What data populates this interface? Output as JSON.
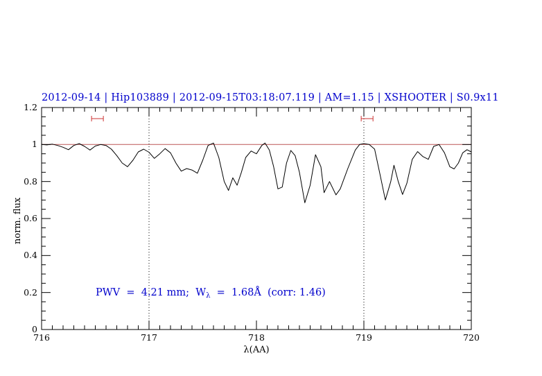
{
  "chart_data": {
    "type": "line",
    "title": "2012-09-14 | Hip103889 | 2012-09-15T03:18:07.119 | AM=1.15 | XSHOOTER | S0.9x11",
    "xlabel": "λ(AA)",
    "ylabel": "norm. flux",
    "xlim": [
      716,
      720
    ],
    "ylim": [
      0,
      1.2
    ],
    "x_major_ticks": [
      716,
      717,
      718,
      719,
      720
    ],
    "x_tick_labels": [
      "716",
      "717",
      "718",
      "719",
      "720"
    ],
    "y_major_ticks": [
      0,
      0.2,
      0.4,
      0.6,
      0.8,
      1,
      1.2
    ],
    "y_tick_labels": [
      "0",
      "0.2",
      "0.4",
      "0.6",
      "0.8",
      "1",
      "1.2"
    ],
    "x_minor_step": 0.1,
    "y_minor_step": 0.05,
    "grid": "off",
    "vlines": [
      717,
      719
    ],
    "vline_style": "dotted",
    "legend": "none",
    "colors": {
      "title": "#0000cc",
      "annotation": "#0000cc",
      "spectrum": "#000000",
      "continuum": "#bb5555",
      "markers": "#cc3333",
      "axes": "#000000"
    },
    "markers": [
      {
        "x": 716.52,
        "halfwidth": 0.055,
        "y": 1.14
      },
      {
        "x": 719.03,
        "halfwidth": 0.055,
        "y": 1.14
      }
    ],
    "annotation": {
      "part1": "PWV  =  4.21 mm;  W",
      "sub": "λ",
      "part2": "  =  1.68Å  (corr: 1.46)",
      "full": "PWV = 4.21 mm; W_λ = 1.68Å (corr: 1.46)"
    },
    "series": [
      {
        "name": "continuum",
        "color": "#bb5555",
        "width": 1,
        "x": [
          716,
          720
        ],
        "y": [
          1,
          1
        ]
      },
      {
        "name": "spectrum",
        "color": "#000000",
        "width": 1,
        "x": [
          716.0,
          716.05,
          716.1,
          716.15,
          716.2,
          716.25,
          716.3,
          716.35,
          716.4,
          716.45,
          716.5,
          716.55,
          716.6,
          716.65,
          716.7,
          716.75,
          716.8,
          716.85,
          716.9,
          716.95,
          717.0,
          717.05,
          717.1,
          717.15,
          717.2,
          717.25,
          717.3,
          717.35,
          717.4,
          717.45,
          717.5,
          717.55,
          717.6,
          717.65,
          717.7,
          717.74,
          717.78,
          717.82,
          717.86,
          717.9,
          717.95,
          718.0,
          718.05,
          718.08,
          718.12,
          718.16,
          718.2,
          718.24,
          718.28,
          718.32,
          718.36,
          718.4,
          718.45,
          718.5,
          718.55,
          718.6,
          718.63,
          718.68,
          718.74,
          718.78,
          718.85,
          718.92,
          718.96,
          719.0,
          719.05,
          719.1,
          719.15,
          719.2,
          719.25,
          719.28,
          719.32,
          719.36,
          719.4,
          719.45,
          719.5,
          719.55,
          719.6,
          719.65,
          719.7,
          719.75,
          719.8,
          719.84,
          719.88,
          719.92,
          719.96,
          720.0
        ],
        "y": [
          1.0,
          0.998,
          1.002,
          0.995,
          0.985,
          0.972,
          0.995,
          1.005,
          0.99,
          0.97,
          0.992,
          1.0,
          0.995,
          0.975,
          0.94,
          0.9,
          0.88,
          0.915,
          0.96,
          0.975,
          0.958,
          0.925,
          0.95,
          0.978,
          0.955,
          0.9,
          0.856,
          0.87,
          0.862,
          0.845,
          0.915,
          0.995,
          1.008,
          0.93,
          0.8,
          0.752,
          0.82,
          0.78,
          0.85,
          0.93,
          0.965,
          0.95,
          0.995,
          1.008,
          0.97,
          0.88,
          0.76,
          0.77,
          0.9,
          0.968,
          0.94,
          0.85,
          0.685,
          0.78,
          0.945,
          0.88,
          0.74,
          0.8,
          0.728,
          0.76,
          0.87,
          0.97,
          1.0,
          1.005,
          1.0,
          0.975,
          0.84,
          0.7,
          0.8,
          0.888,
          0.8,
          0.73,
          0.79,
          0.92,
          0.962,
          0.935,
          0.92,
          0.99,
          1.0,
          0.955,
          0.88,
          0.868,
          0.9,
          0.955,
          0.972,
          0.96
        ]
      }
    ]
  }
}
